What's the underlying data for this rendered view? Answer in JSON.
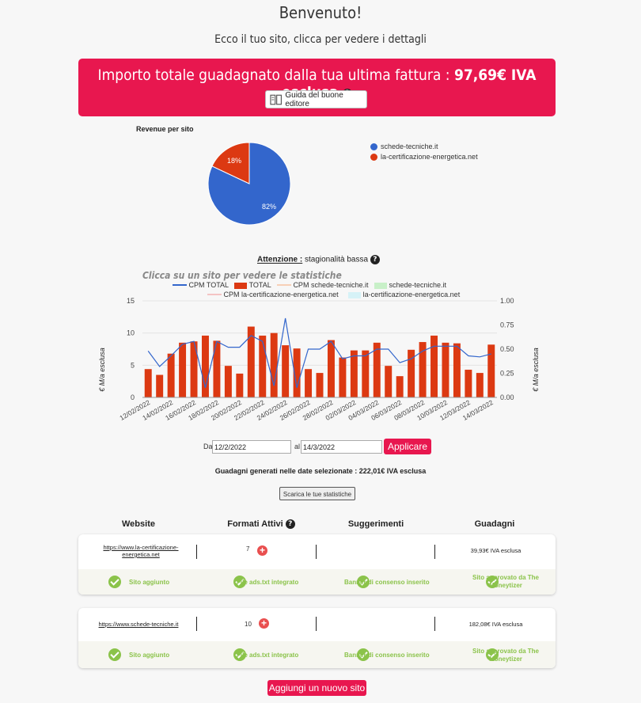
{
  "header": {
    "title": "Benvenuto!",
    "subtitle": "Ecco il tuo sito, clicca per vedere i dettagli"
  },
  "banner": {
    "text": "Importo totale guadagnato dalla tua ultima fattura : ",
    "amount": "97,69€ IVA esclusa",
    "help_icon": "?",
    "guide_label": "Guida del buone editore",
    "color": "#e8174f"
  },
  "pie": {
    "title": "Revenue per sito",
    "legend": [
      "schede-tecniche.it",
      "la-certificazione-energetica.net"
    ],
    "labels": [
      "82%",
      "18%"
    ]
  },
  "notice": {
    "label": "Attenzione :",
    "text": " stagionalità bassa",
    "help_icon": "?",
    "click_hint": "Clicca su un sito per vedere le statistiche"
  },
  "bar_legend": {
    "items": [
      "CPM TOTAL",
      "TOTAL",
      "CPM schede-tecniche.it",
      "schede-tecniche.it",
      "CPM la-certificazione-energetica.net",
      "la-certificazione-energetica.net"
    ]
  },
  "chart_data": [
    {
      "type": "pie",
      "title": "Revenue per sito",
      "categories": [
        "schede-tecniche.it",
        "la-certificazione-energetica.net"
      ],
      "values": [
        82,
        18
      ],
      "colors": [
        "#3366cc",
        "#dc3912"
      ],
      "legend": "right"
    },
    {
      "type": "bar",
      "ylabel": "€ M/a esclusa",
      "y2label": "€ M/a esclusa",
      "ylim": [
        0,
        15
      ],
      "y2lim": [
        0,
        1.0
      ],
      "yticks": [
        "0",
        "5",
        "10",
        "15"
      ],
      "y2ticks": [
        "0.00",
        "0.25",
        "0.50",
        "0.75",
        "1.00"
      ],
      "xticks": [
        "12/02/2022",
        "14/02/2022",
        "16/02/2022",
        "18/02/2022",
        "20/02/2022",
        "22/02/2022",
        "24/02/2022",
        "26/02/2022",
        "28/02/2022",
        "02/03/2022",
        "04/03/2022",
        "06/03/2022",
        "08/03/2022",
        "10/03/2022",
        "12/03/2022",
        "14/03/2022"
      ],
      "series": [
        {
          "name": "TOTAL",
          "values": [
            4.4,
            3.5,
            6.8,
            8.5,
            8.7,
            9.6,
            8.8,
            4.9,
            3.7,
            11.0,
            9.6,
            10.0,
            8.1,
            7.6,
            4.4,
            3.8,
            8.9,
            6.2,
            7.3,
            7.3,
            8.5,
            4.9,
            3.3,
            7.4,
            8.6,
            9.6,
            8.5,
            8.4,
            4.3,
            3.8,
            8.2
          ],
          "color": "#dc3912"
        },
        {
          "name": "CPM TOTAL",
          "values": [
            0.48,
            0.32,
            0.43,
            0.55,
            0.58,
            0.1,
            0.58,
            0.52,
            0.52,
            0.64,
            0.58,
            0.12,
            0.82,
            0.1,
            0.5,
            0.5,
            0.58,
            0.4,
            0.43,
            0.43,
            0.5,
            0.5,
            0.36,
            0.4,
            0.48,
            0.53,
            0.53,
            0.53,
            0.43,
            0.42,
            0.45
          ],
          "color": "#3366cc"
        }
      ],
      "legend": "top"
    }
  ],
  "dates": {
    "from_label": "Da",
    "from_value": "12/2/2022",
    "to_label": "al",
    "to_value": "14/3/2022",
    "apply_label": "Applicare",
    "earnings_text": "Guadagni generati nelle date selezionate : 222,01€ IVA esclusa",
    "download_label": "Scarica le tue statistiche"
  },
  "table": {
    "headers": [
      "Website",
      "Formati Attivi",
      "Suggerimenti",
      "Guadagni"
    ],
    "help_icon": "?",
    "sites": [
      {
        "url": "https://www.la-certificazione-energetica.net",
        "url_line1": "https://www.la-certificazione-",
        "url_line2": "energetica.net",
        "formats": "7",
        "earnings": "39,93€ IVA esclusa",
        "checks": [
          "Sito aggiunto",
          "File ads.txt integrato",
          "Banner di consenso inserito",
          "Sito approvato da The Moneytizer"
        ]
      },
      {
        "url": "https://www.schede-tecniche.it",
        "formats": "10",
        "earnings": "182,08€ IVA esclusa",
        "checks": [
          "Sito aggiunto",
          "File ads.txt integrato",
          "Banner di consenso inserito",
          "Sito approvato da The Moneytizer"
        ]
      }
    ],
    "plus_icon": "+",
    "add_site_label": "Aggiungi un nuovo sito"
  }
}
